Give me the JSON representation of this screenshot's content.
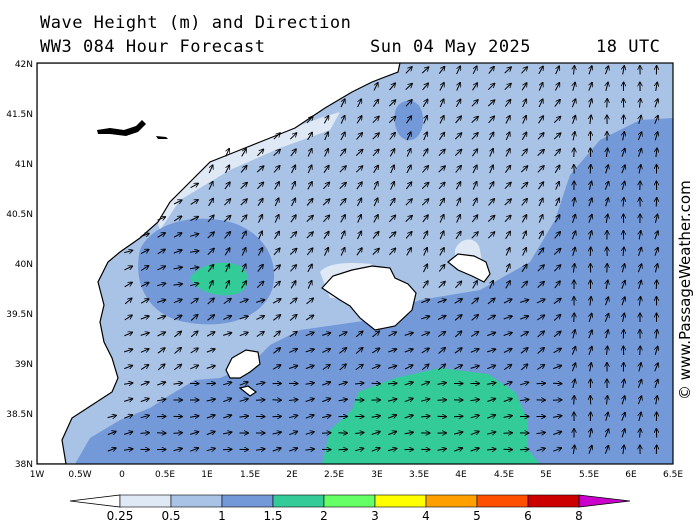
{
  "header": {
    "title": "Wave Height (m) and Direction",
    "model": "WW3 084 Hour Forecast",
    "date": "Sun 04 May 2025",
    "time": "18 UTC"
  },
  "watermark": "© www.PassageWeather.com",
  "axes": {
    "lat_labels": [
      "42N",
      "41.5N",
      "41N",
      "40.5N",
      "40N",
      "39.5N",
      "39N",
      "38.5N",
      "38N"
    ],
    "lon_labels": [
      "1W",
      "0.5W",
      "0",
      "0.5E",
      "1E",
      "1.5E",
      "2E",
      "2.5E",
      "3E",
      "3.5E",
      "4E",
      "4.5E",
      "5E",
      "5.5E",
      "6E",
      "6.5E"
    ]
  },
  "colorbar": {
    "labels": [
      "0.25",
      "0.5",
      "1",
      "1.5",
      "2",
      "3",
      "4",
      "5",
      "6",
      "8"
    ],
    "colors": [
      "#dfe9f5",
      "#a9c3e6",
      "#7399d9",
      "#33cc99",
      "#66ff66",
      "#ffff00",
      "#ffa000",
      "#ff5000",
      "#cc0000",
      "#cc00cc"
    ]
  },
  "colors": {
    "land": "#ffffff",
    "very_light_sea": "#dfe9f5",
    "light_sea": "#a9c3e6",
    "medium_sea": "#7399d9",
    "green_sea": "#33cc99"
  },
  "icons": {
    "arrows": "wave-direction-arrow"
  }
}
